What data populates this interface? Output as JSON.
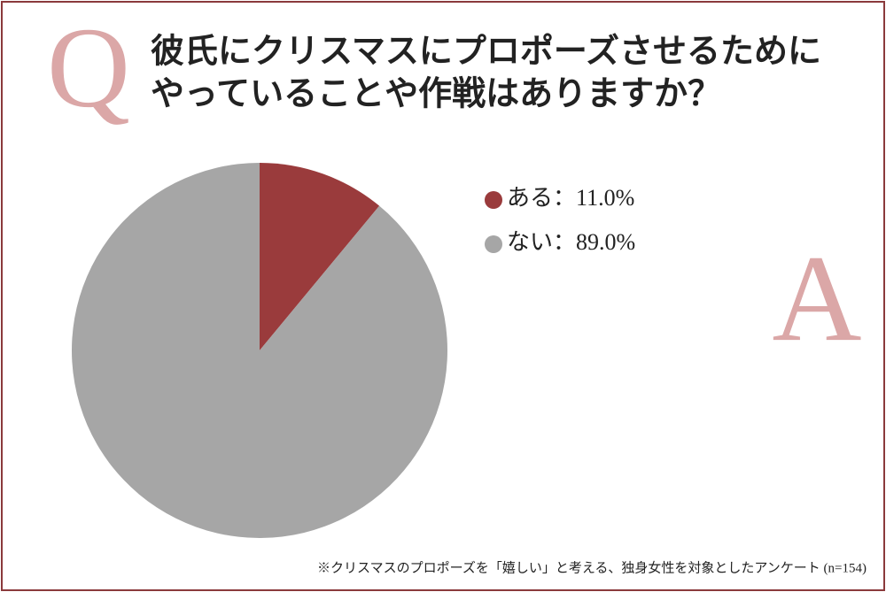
{
  "chart_data": {
    "type": "pie",
    "question_mark": "Q",
    "answer_mark": "A",
    "title_lines": [
      "彼氏にクリスマスにプロポーズさせるために",
      "やっていることや作戦はありますか？"
    ],
    "categories": [
      "ある",
      "ない"
    ],
    "values": [
      11.0,
      89.0
    ],
    "value_labels": [
      "11.0%",
      "89.0%"
    ],
    "separator": "：",
    "colors": [
      "#9a3b3c",
      "#a6a6a6"
    ],
    "footnote": "※クリスマスのプロポーズを「嬉しい」と考える、独身女性を対象としたアンケート (n=154)"
  }
}
